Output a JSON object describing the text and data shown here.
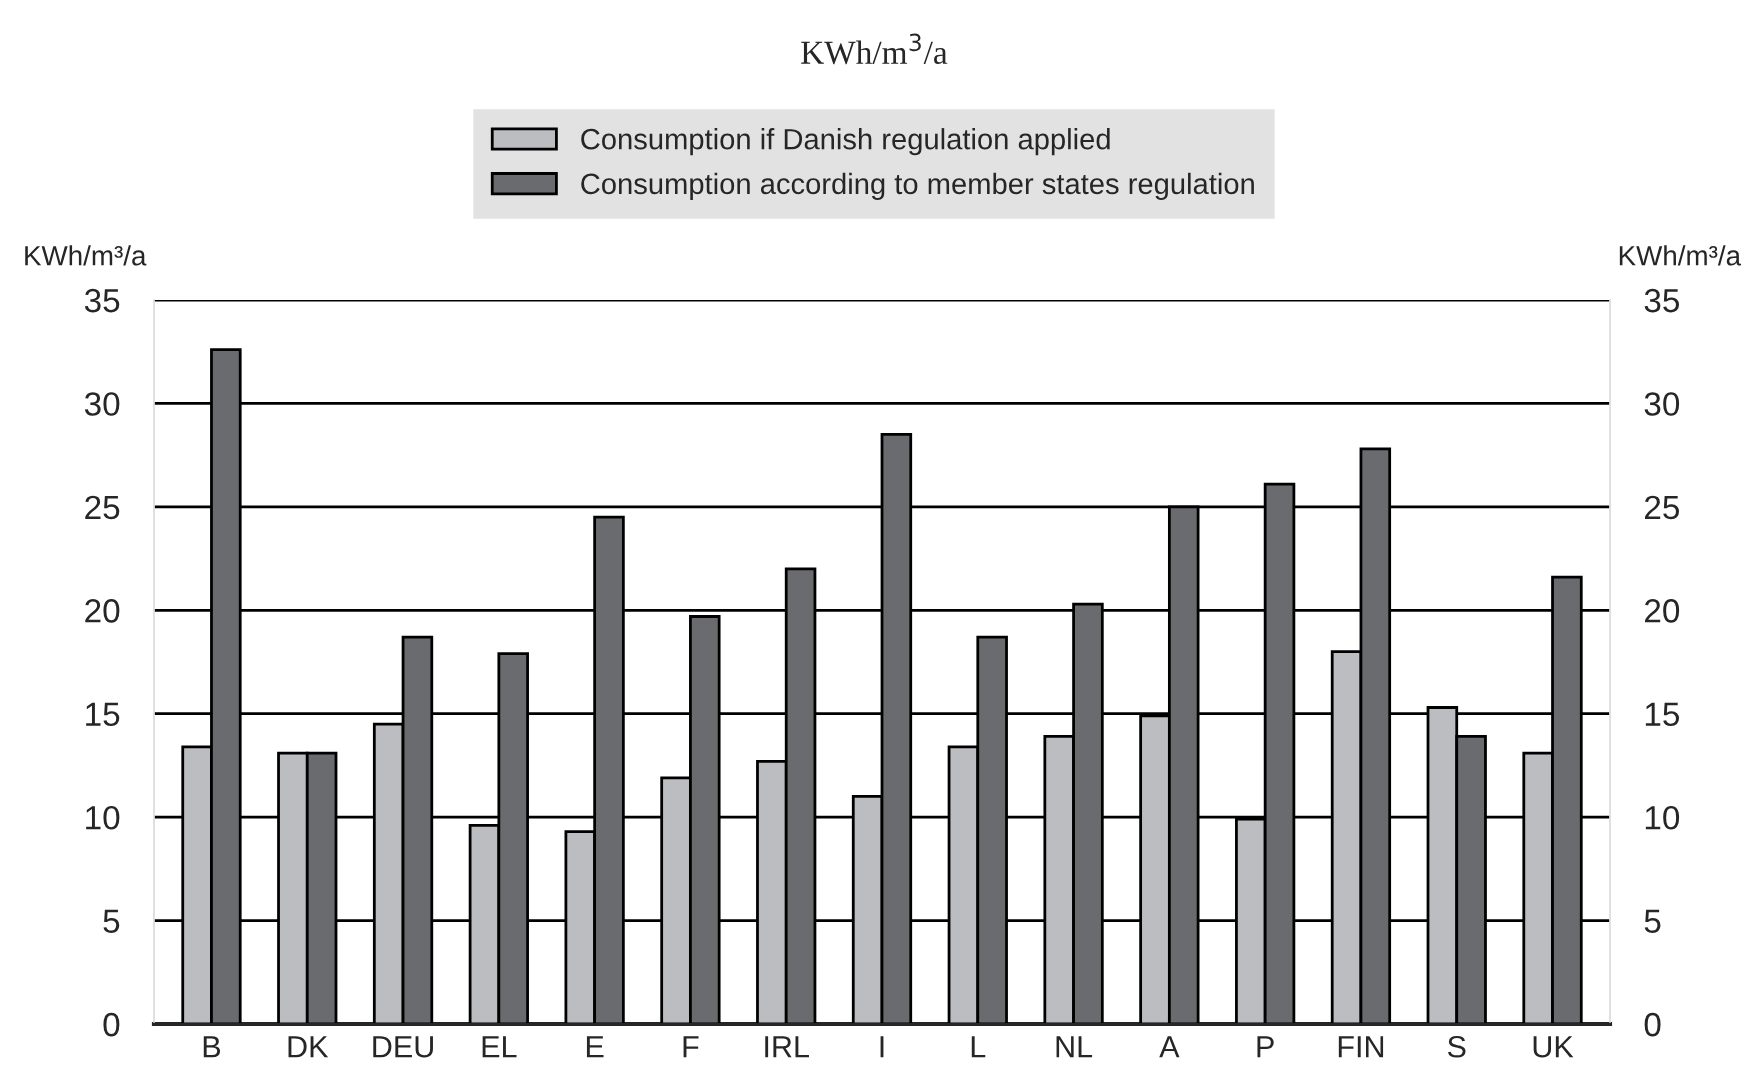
{
  "chart_data": {
    "type": "bar",
    "subtitle": "KWh/m$^{3}$/a",
    "ylabel": "KWh/m³/a",
    "y2label": "KWh/m³/a",
    "categories": [
      "B",
      "DK",
      "DEU",
      "EL",
      "E",
      "F",
      "IRL",
      "I",
      "L",
      "NL",
      "A",
      "P",
      "FIN",
      "S",
      "UK"
    ],
    "series": [
      {
        "name": "Consumption if Danish regulation applied",
        "color": "#bcbdc0",
        "values": [
          13.4,
          13.1,
          14.5,
          9.6,
          9.3,
          11.9,
          12.7,
          11.0,
          13.4,
          13.9,
          14.9,
          9.9,
          18.0,
          15.3,
          13.1
        ]
      },
      {
        "name": "Consumption according to member states regulation",
        "color": "#6a6b6f",
        "values": [
          32.6,
          13.1,
          18.7,
          17.9,
          24.5,
          19.7,
          22.0,
          28.5,
          18.7,
          20.3,
          25.0,
          26.1,
          27.8,
          13.9,
          21.6
        ]
      }
    ],
    "ylim": [
      0,
      35
    ],
    "yticks": [
      0,
      5,
      10,
      15,
      20,
      25,
      30,
      35
    ],
    "y2lim": [
      0,
      35
    ],
    "y2ticks": [
      0,
      5,
      10,
      15,
      20,
      25,
      30,
      35
    ],
    "grid": "y",
    "legend": "top"
  }
}
